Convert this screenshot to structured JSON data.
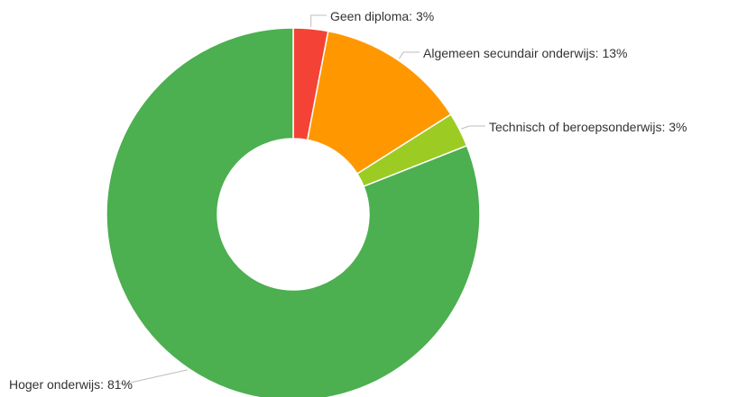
{
  "chart_data": {
    "type": "pie",
    "variant": "donut",
    "title": "",
    "legend": "none",
    "label_separator": ": ",
    "series": [
      {
        "name": "Geen diploma",
        "value": 3,
        "label": "Geen diploma: 3%",
        "color": "#f44336"
      },
      {
        "name": "Algemeen secundair onderwijs",
        "value": 13,
        "label": "Algemeen secundair onderwijs: 13%",
        "color": "#ff9800"
      },
      {
        "name": "Technisch of beroepsonderwijs",
        "value": 3,
        "label": "Technisch of beroepsonderwijs: 3%",
        "color": "#9ccc23"
      },
      {
        "name": "Hoger onderwijs",
        "value": 81,
        "label": "Hoger onderwijs: 81%",
        "color": "#4caf50"
      }
    ]
  }
}
